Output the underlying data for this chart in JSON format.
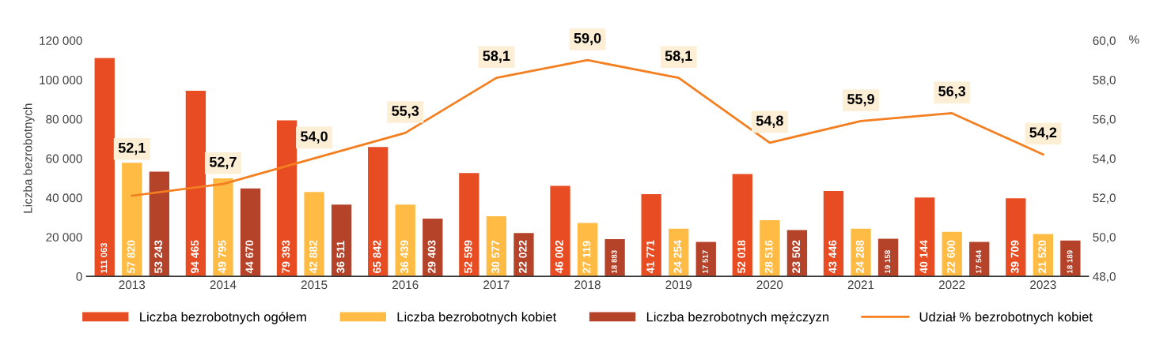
{
  "chart_data": {
    "type": "bar",
    "ylabel": "Liczba bezrobotnych",
    "y2label": "%",
    "legend": "bottom",
    "grid": false,
    "categories": [
      "2013",
      "2014",
      "2015",
      "2016",
      "2017",
      "2018",
      "2019",
      "2020",
      "2021",
      "2022",
      "2023"
    ],
    "ylim": [
      0,
      120000
    ],
    "yticks": [
      {
        "value": 0,
        "label": "0"
      },
      {
        "value": 20000,
        "label": "20 000"
      },
      {
        "value": 40000,
        "label": "40 000"
      },
      {
        "value": 60000,
        "label": "60 000"
      },
      {
        "value": 80000,
        "label": "80 000"
      },
      {
        "value": 100000,
        "label": "100 000"
      },
      {
        "value": 120000,
        "label": "120 000"
      }
    ],
    "y2lim": [
      48,
      60
    ],
    "y2ticks": [
      {
        "value": 48,
        "label": "48,0"
      },
      {
        "value": 50,
        "label": "50,0"
      },
      {
        "value": 52,
        "label": "52,0"
      },
      {
        "value": 54,
        "label": "54,0"
      },
      {
        "value": 56,
        "label": "56,0"
      },
      {
        "value": 58,
        "label": "58,0"
      },
      {
        "value": 60,
        "label": "60,0"
      }
    ],
    "series": [
      {
        "name": "Liczba bezrobotnych ogółem",
        "color": "#e84c22",
        "values": [
          111063,
          94465,
          79393,
          65842,
          52599,
          46002,
          41771,
          52018,
          43446,
          40144,
          39709
        ],
        "value_labels": [
          "111 063",
          "94 465",
          "79 393",
          "65 842",
          "52 599",
          "46 002",
          "41 771",
          "52 018",
          "43 446",
          "40 144",
          "39 709"
        ]
      },
      {
        "name": "Liczba bezrobotnych kobiet",
        "color": "#ffbb44",
        "values": [
          57820,
          49795,
          42882,
          36439,
          30577,
          27119,
          24254,
          28516,
          24288,
          22600,
          21520
        ],
        "value_labels": [
          "57 820",
          "49 795",
          "42 882",
          "36 439",
          "30 577",
          "27 119",
          "24 254",
          "28 516",
          "24 288",
          "22 600",
          "21 520"
        ]
      },
      {
        "name": "Liczba bezrobotnych mężczyzn",
        "color": "#b5432a",
        "values": [
          53243,
          44670,
          36511,
          29403,
          22022,
          18883,
          17517,
          23502,
          19158,
          17544,
          18189
        ],
        "value_labels": [
          "53 243",
          "44 670",
          "36 511",
          "29 403",
          "22 022",
          "18 883",
          "17 517",
          "23 502",
          "19 158",
          "17 544",
          "18 189"
        ]
      },
      {
        "name": "Udział % bezrobotnych kobiet",
        "type": "line",
        "axis": "y2",
        "color": "#f47f20",
        "values": [
          52.1,
          52.7,
          54.0,
          55.3,
          58.1,
          59.0,
          58.1,
          54.8,
          55.9,
          56.3,
          54.2
        ],
        "value_labels": [
          "52,1",
          "52,7",
          "54,0",
          "55,3",
          "58,1",
          "59,0",
          "58,1",
          "54,8",
          "55,9",
          "56,3",
          "54,2"
        ]
      }
    ]
  }
}
